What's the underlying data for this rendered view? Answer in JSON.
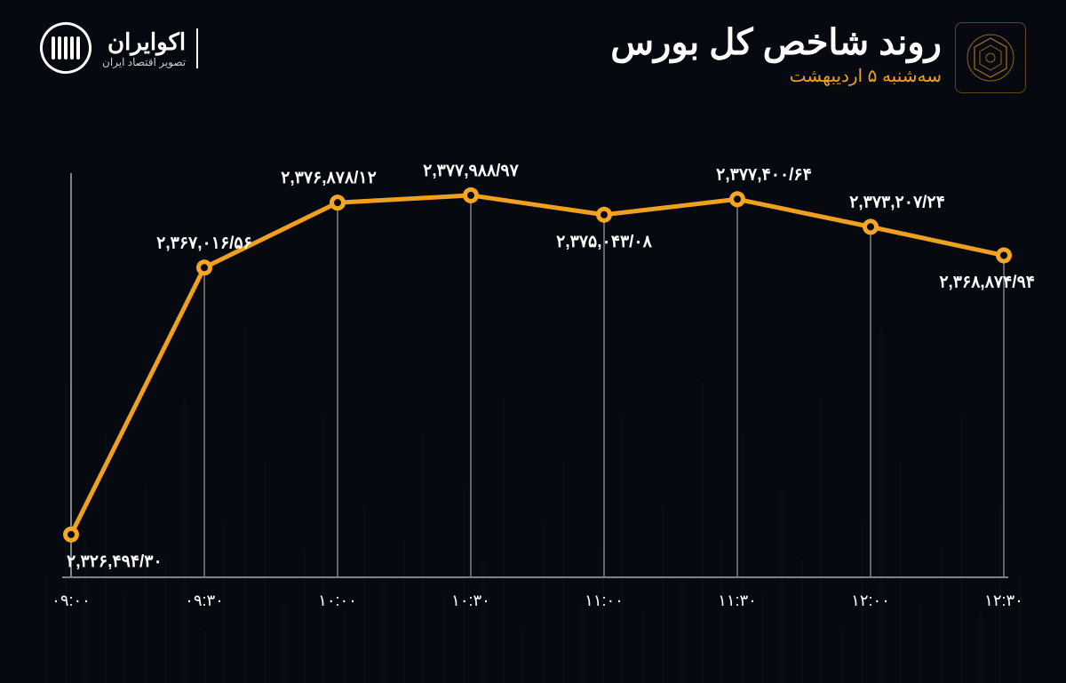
{
  "header": {
    "title": "روند شاخص کل بورس",
    "subtitle": "سه‌شنبه ۵ اردیبهشت",
    "brand_name": "اکوایران",
    "brand_tagline": "تصویر اقتصاد ایران"
  },
  "chart": {
    "type": "line",
    "background_color": "#060a10",
    "line_color": "#f0a020",
    "line_width": 5,
    "marker_outer_color": "#f5a623",
    "marker_inner_color": "#060a10",
    "marker_outer_radius": 9,
    "marker_inner_radius": 4,
    "axis_color": "#828282",
    "grid_color": "#828282",
    "label_color": "#ffffff",
    "accent_color": "#f0a020",
    "label_fontsize": 19,
    "tick_fontsize": 18,
    "x_labels": [
      "۰۹:۰۰",
      "۰۹:۳۰",
      "۱۰:۰۰",
      "۱۰:۳۰",
      "۱۱:۰۰",
      "۱۱:۳۰",
      "۱۲:۰۰",
      "۱۲:۳۰"
    ],
    "value_labels": [
      "۲,۳۲۶,۴۹۴/۳۰",
      "۲,۳۶۷,۰۱۶/۵۶",
      "۲,۳۷۶,۸۷۸/۱۲",
      "۲,۳۷۷,۹۸۸/۹۷",
      "۲,۳۷۵,۰۴۳/۰۸",
      "۲,۳۷۷,۴۰۰/۶۴",
      "۲,۳۷۳,۲۰۷/۲۴",
      "۲,۳۶۸,۸۷۴/۹۴"
    ],
    "values": [
      2326494.3,
      2367016.56,
      2376878.12,
      2377988.97,
      2375043.08,
      2377400.64,
      2373207.24,
      2368874.94
    ],
    "ylim": [
      2320000,
      2380000
    ],
    "label_positions": [
      "below",
      "above",
      "above",
      "above",
      "below",
      "above",
      "above",
      "below"
    ],
    "label_x_nudge": [
      0,
      0,
      -10,
      0,
      0,
      30,
      30,
      30
    ]
  }
}
